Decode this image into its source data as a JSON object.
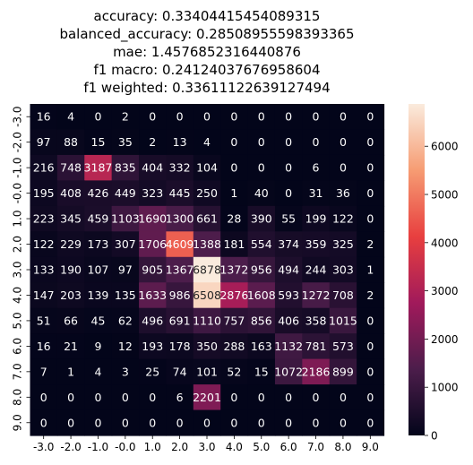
{
  "chart_data": {
    "type": "heatmap",
    "title_lines": [
      "accuracy: 0.33404415454089315",
      "balanced_accuracy: 0.28508955598393365",
      "mae: 1.4576852316440876",
      "f1 macro: 0.24124037676958604",
      "f1 weighted: 0.33611122639127494"
    ],
    "x_labels": [
      "-3.0",
      "-2.0",
      "-1.0",
      "-0.0",
      "1.0",
      "2.0",
      "3.0",
      "4.0",
      "5.0",
      "6.0",
      "7.0",
      "8.0",
      "9.0"
    ],
    "y_labels": [
      "-3.0",
      "-2.0",
      "-1.0",
      "-0.0",
      "1.0",
      "2.0",
      "3.0",
      "4.0",
      "5.0",
      "6.0",
      "7.0",
      "8.0",
      "9.0"
    ],
    "values": [
      [
        16,
        4,
        0,
        2,
        0,
        0,
        0,
        0,
        0,
        0,
        0,
        0,
        0
      ],
      [
        97,
        88,
        15,
        35,
        2,
        13,
        4,
        0,
        0,
        0,
        0,
        0,
        0
      ],
      [
        216,
        748,
        3187,
        835,
        404,
        332,
        104,
        0,
        0,
        0,
        6,
        0,
        0
      ],
      [
        195,
        408,
        426,
        449,
        323,
        445,
        250,
        1,
        40,
        0,
        31,
        36,
        0
      ],
      [
        223,
        345,
        459,
        1103,
        1690,
        1300,
        661,
        28,
        390,
        55,
        199,
        122,
        0
      ],
      [
        122,
        229,
        173,
        307,
        1706,
        4609,
        1388,
        181,
        554,
        374,
        359,
        325,
        2
      ],
      [
        133,
        190,
        107,
        97,
        905,
        1367,
        6878,
        1372,
        956,
        494,
        244,
        303,
        1
      ],
      [
        147,
        203,
        139,
        135,
        1633,
        986,
        6508,
        2876,
        1608,
        593,
        1272,
        708,
        2
      ],
      [
        51,
        66,
        45,
        62,
        496,
        691,
        1110,
        757,
        856,
        406,
        358,
        1015,
        0
      ],
      [
        16,
        21,
        9,
        12,
        193,
        178,
        350,
        288,
        163,
        1132,
        781,
        573,
        0
      ],
      [
        7,
        1,
        4,
        3,
        25,
        74,
        101,
        52,
        15,
        1072,
        2186,
        899,
        0
      ],
      [
        0,
        0,
        0,
        0,
        0,
        6,
        2201,
        0,
        0,
        0,
        0,
        0,
        0
      ],
      [
        0,
        0,
        0,
        0,
        0,
        0,
        0,
        0,
        0,
        0,
        0,
        0,
        0
      ]
    ],
    "colorbar": {
      "min": 0,
      "max": 6878,
      "ticks": [
        0,
        1000,
        2000,
        3000,
        4000,
        5000,
        6000
      ]
    },
    "colormap": [
      "#03051a",
      "#4c1d4b",
      "#a11a5b",
      "#e83f3f",
      "#f69c73",
      "#faebdd"
    ]
  }
}
